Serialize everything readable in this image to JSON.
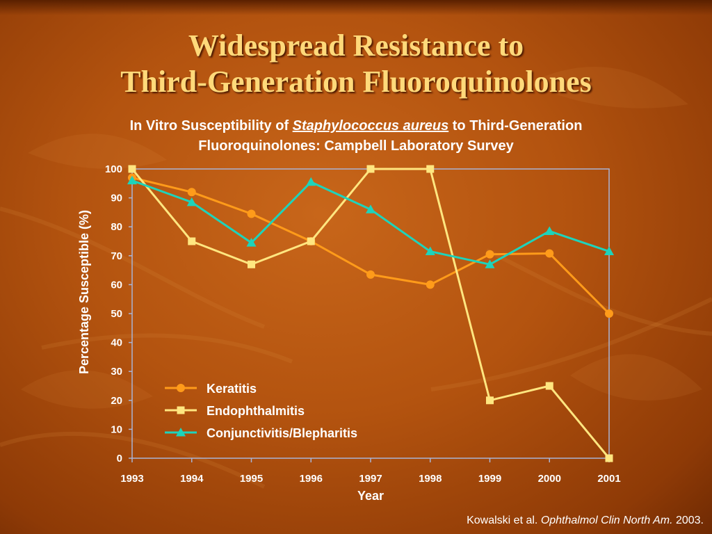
{
  "slide": {
    "title_line1": "Widespread Resistance to",
    "title_line2": "Third-Generation Fluoroquinolones",
    "subtitle_pre": "In Vitro Susceptibility of ",
    "subtitle_italic": "Staphylococcus aureus",
    "subtitle_post": " to Third-Generation",
    "subtitle_line2": "Fluoroquinolones: Campbell Laboratory Survey",
    "citation_pre": "Kowalski et al. ",
    "citation_journal": "Ophthalmol Clin North Am.",
    "citation_year": " 2003."
  },
  "colors": {
    "keratitis": "#ff9b1a",
    "endophthalmitis": "#ffe680",
    "conjunctivitis": "#1ed3bb",
    "axis": "#a9b4d6"
  },
  "chart_data": {
    "type": "line",
    "xlabel": "Year",
    "ylabel": "Percentage Susceptible (%)",
    "x": [
      "1993",
      "1994",
      "1995",
      "1996",
      "1997",
      "1998",
      "1999",
      "2000",
      "2001"
    ],
    "ylim": [
      0,
      100
    ],
    "yticks": [
      0,
      10,
      20,
      30,
      40,
      50,
      60,
      70,
      80,
      90,
      100
    ],
    "grid": false,
    "legend_position": "bottom-left",
    "series": [
      {
        "name": "Keratitis",
        "marker": "circle",
        "values": [
          97,
          92,
          84.5,
          75,
          63.5,
          60,
          70.5,
          70.8,
          50
        ]
      },
      {
        "name": "Endophthalmitis",
        "marker": "square",
        "values": [
          100,
          75,
          67,
          75,
          100,
          100,
          20,
          25,
          0
        ]
      },
      {
        "name": "Conjunctivitis/Blepharitis",
        "marker": "triangle",
        "values": [
          96,
          88.5,
          74.5,
          95.5,
          86,
          71.5,
          67,
          78.5,
          71.5
        ]
      }
    ]
  }
}
